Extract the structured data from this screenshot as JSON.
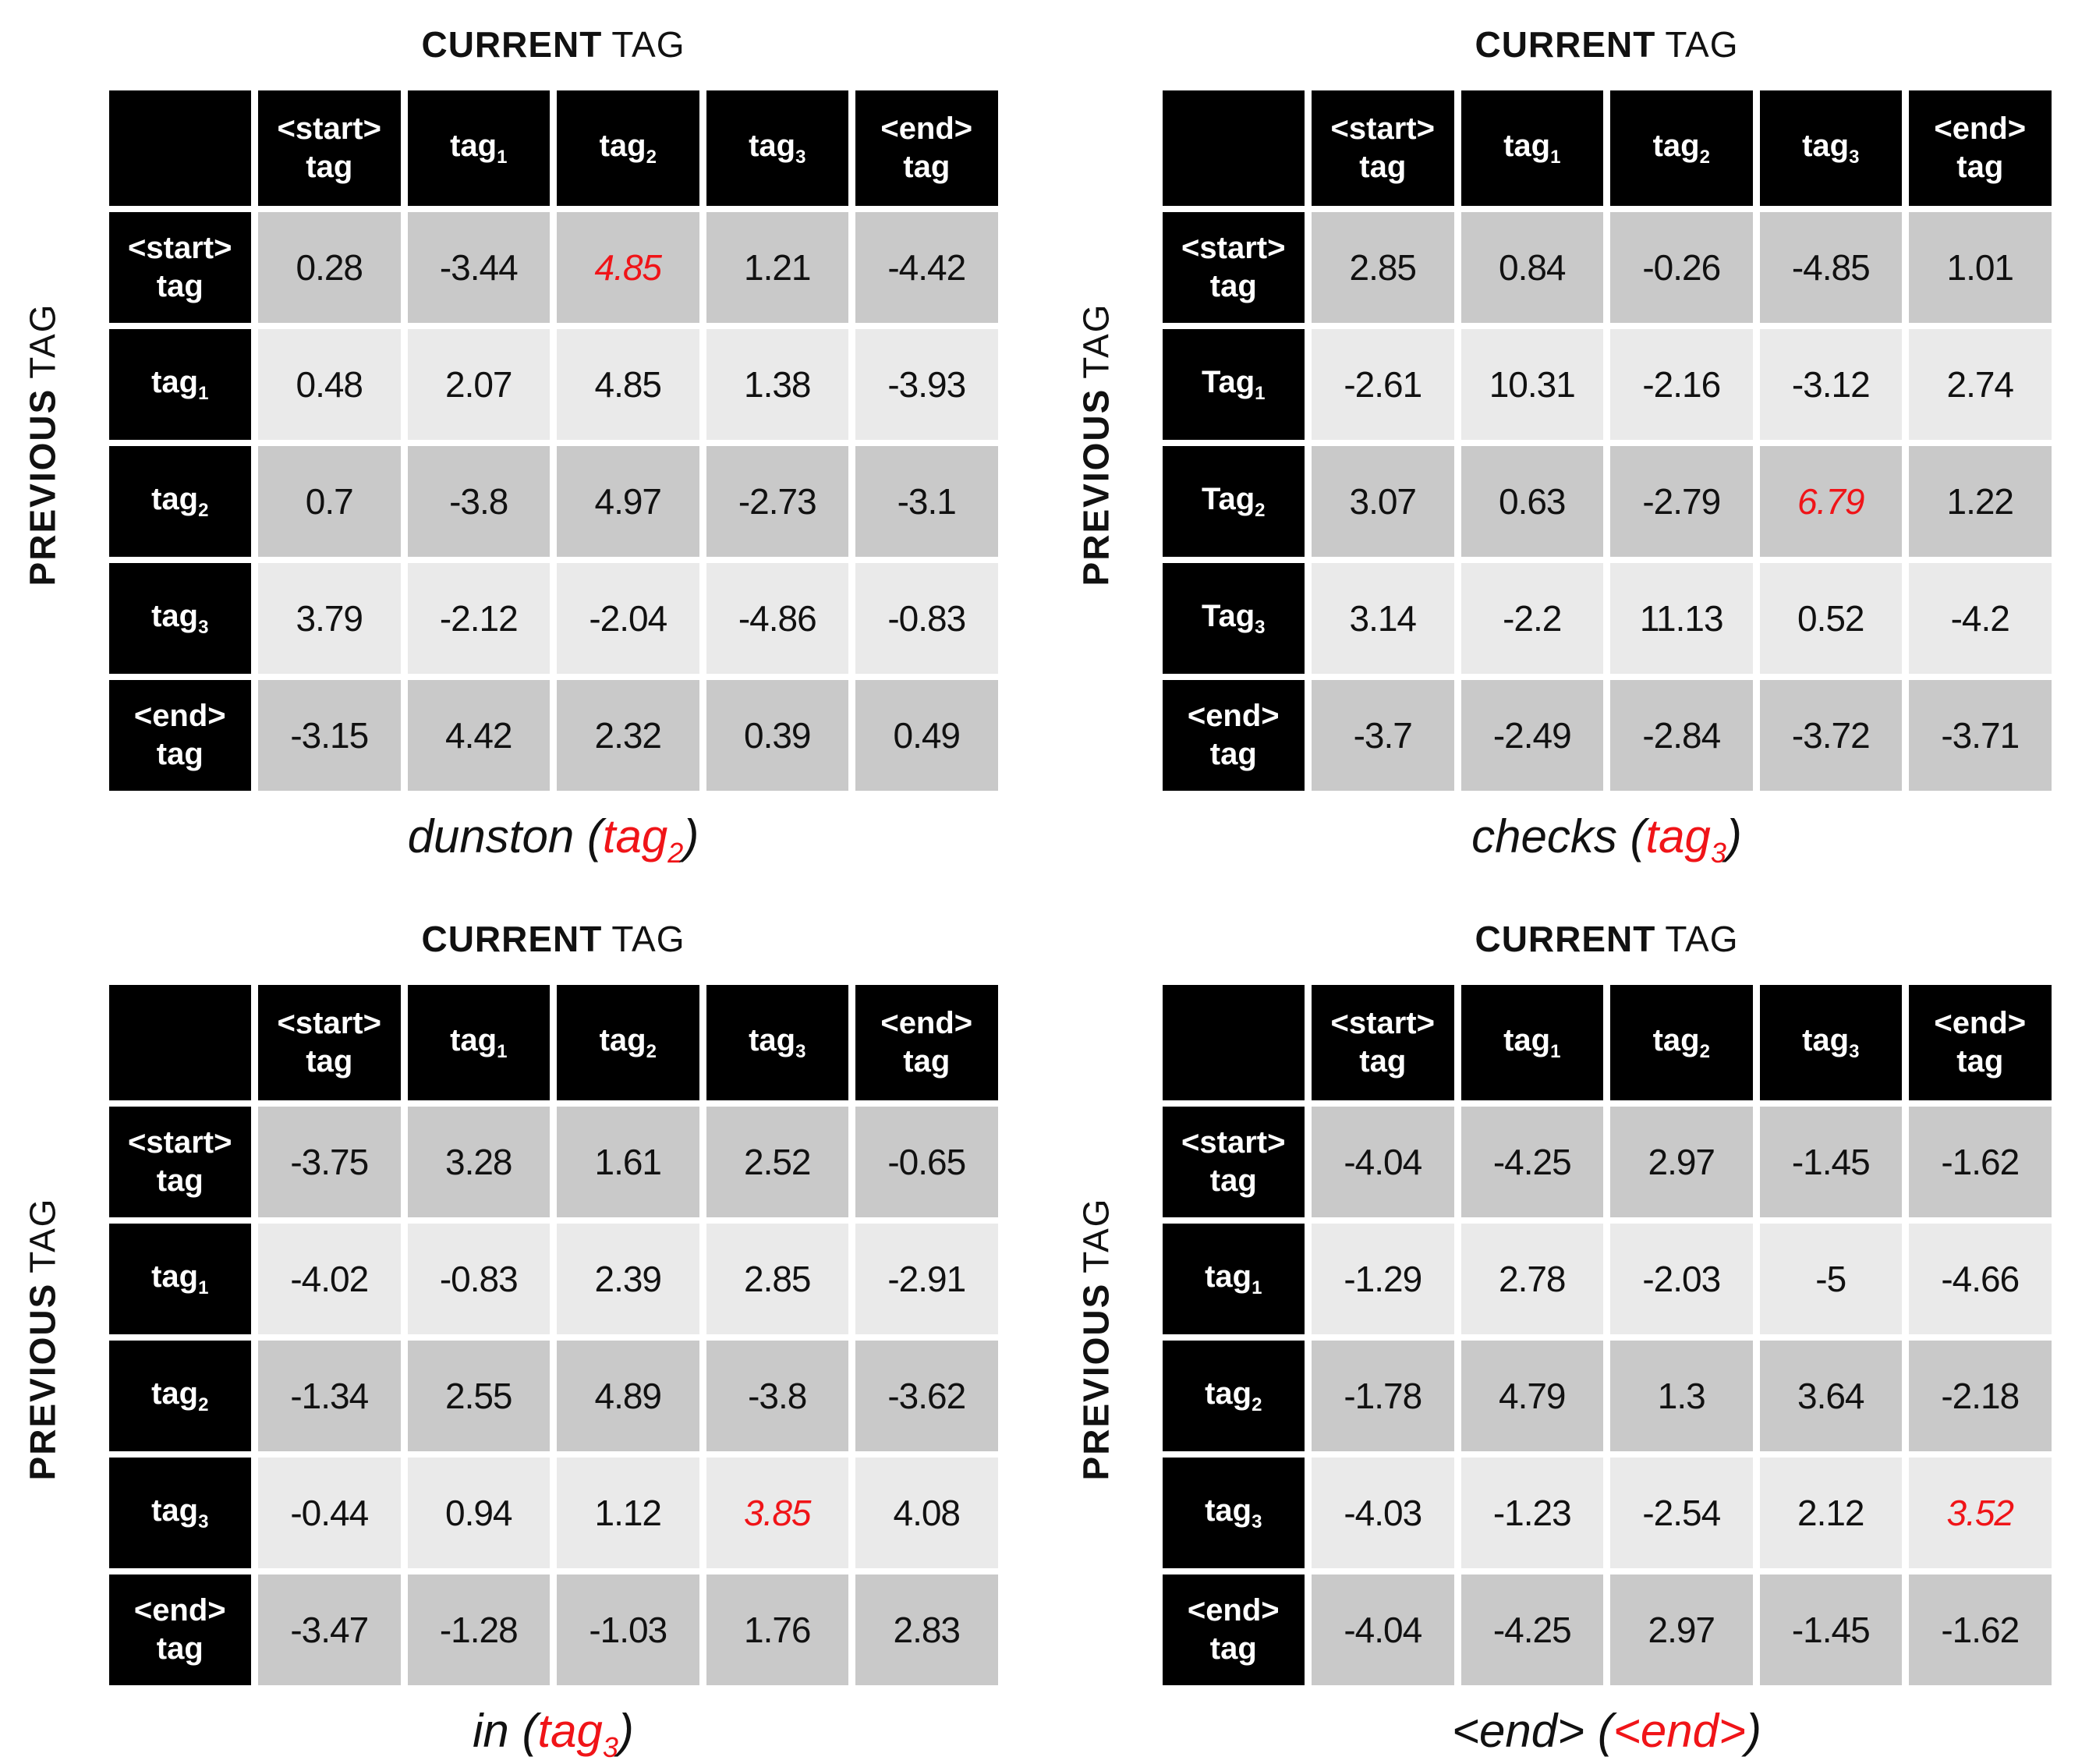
{
  "colors": {
    "highlight_red": "#f01418",
    "row_shade_dark": "#c9c9c9",
    "row_shade_light": "#eaeaea",
    "header_bg": "#000000",
    "header_text": "#ffffff",
    "value_text": "#111111",
    "background": "#ffffff"
  },
  "chart_data": [
    {
      "type": "table",
      "axis_top": {
        "bold": "CURRENT",
        "regular": "TAG"
      },
      "axis_left": {
        "bold": "PREVIOUS",
        "regular": "TAG"
      },
      "columns": [
        {
          "line1": "<start>",
          "line2": "tag"
        },
        {
          "text": "tag",
          "sub": "1"
        },
        {
          "text": "tag",
          "sub": "2"
        },
        {
          "text": "tag",
          "sub": "3"
        },
        {
          "line1": "<end>",
          "line2": "tag"
        }
      ],
      "rows": [
        {
          "label": {
            "line1": "<start>",
            "line2": "tag"
          },
          "values": [
            "0.28",
            "-3.44",
            "4.85",
            "1.21",
            "-4.42"
          ],
          "highlight_col": 2
        },
        {
          "label": {
            "text": "tag",
            "sub": "1"
          },
          "values": [
            "0.48",
            "2.07",
            "4.85",
            "1.38",
            "-3.93"
          ],
          "highlight_col": null
        },
        {
          "label": {
            "text": "tag",
            "sub": "2"
          },
          "values": [
            "0.7",
            "-3.8",
            "4.97",
            "-2.73",
            "-3.1"
          ],
          "highlight_col": null
        },
        {
          "label": {
            "text": "tag",
            "sub": "3"
          },
          "values": [
            "3.79",
            "-2.12",
            "-2.04",
            "-4.86",
            "-0.83"
          ],
          "highlight_col": null
        },
        {
          "label": {
            "line1": "<end>",
            "line2": "tag"
          },
          "values": [
            "-3.15",
            "4.42",
            "2.32",
            "0.39",
            "0.49"
          ],
          "highlight_col": null
        }
      ],
      "caption": {
        "prefix": "dunston (",
        "highlight": "tag",
        "highlight_sub": "2",
        "suffix": ")"
      }
    },
    {
      "type": "table",
      "axis_top": {
        "bold": "CURRENT",
        "regular": "TAG"
      },
      "axis_left": {
        "bold": "PREVIOUS",
        "regular": "TAG"
      },
      "columns": [
        {
          "line1": "<start>",
          "line2": "tag"
        },
        {
          "text": "tag",
          "sub": "1"
        },
        {
          "text": "tag",
          "sub": "2"
        },
        {
          "text": "tag",
          "sub": "3"
        },
        {
          "line1": "<end>",
          "line2": "tag"
        }
      ],
      "rows": [
        {
          "label": {
            "line1": "<start>",
            "line2": "tag"
          },
          "values": [
            "2.85",
            "0.84",
            "-0.26",
            "-4.85",
            "1.01"
          ],
          "highlight_col": null
        },
        {
          "label": {
            "text": "Tag",
            "sub": "1"
          },
          "values": [
            "-2.61",
            "10.31",
            "-2.16",
            "-3.12",
            "2.74"
          ],
          "highlight_col": null
        },
        {
          "label": {
            "text": "Tag",
            "sub": "2"
          },
          "values": [
            "3.07",
            "0.63",
            "-2.79",
            "6.79",
            "1.22"
          ],
          "highlight_col": 3
        },
        {
          "label": {
            "text": "Tag",
            "sub": "3"
          },
          "values": [
            "3.14",
            "-2.2",
            "11.13",
            "0.52",
            "-4.2"
          ],
          "highlight_col": null
        },
        {
          "label": {
            "line1": "<end>",
            "line2": "tag"
          },
          "values": [
            "-3.7",
            "-2.49",
            "-2.84",
            "-3.72",
            "-3.71"
          ],
          "highlight_col": null
        }
      ],
      "caption": {
        "prefix": "checks (",
        "highlight": "tag",
        "highlight_sub": "3",
        "suffix": ")"
      }
    },
    {
      "type": "table",
      "axis_top": {
        "bold": "CURRENT",
        "regular": "TAG"
      },
      "axis_left": {
        "bold": "PREVIOUS",
        "regular": "TAG"
      },
      "columns": [
        {
          "line1": "<start>",
          "line2": "tag"
        },
        {
          "text": "tag",
          "sub": "1"
        },
        {
          "text": "tag",
          "sub": "2"
        },
        {
          "text": "tag",
          "sub": "3"
        },
        {
          "line1": "<end>",
          "line2": "tag"
        }
      ],
      "rows": [
        {
          "label": {
            "line1": "<start>",
            "line2": "tag"
          },
          "values": [
            "-3.75",
            "3.28",
            "1.61",
            "2.52",
            "-0.65"
          ],
          "highlight_col": null
        },
        {
          "label": {
            "text": "tag",
            "sub": "1"
          },
          "values": [
            "-4.02",
            "-0.83",
            "2.39",
            "2.85",
            "-2.91"
          ],
          "highlight_col": null
        },
        {
          "label": {
            "text": "tag",
            "sub": "2"
          },
          "values": [
            "-1.34",
            "2.55",
            "4.89",
            "-3.8",
            "-3.62"
          ],
          "highlight_col": null
        },
        {
          "label": {
            "text": "tag",
            "sub": "3"
          },
          "values": [
            "-0.44",
            "0.94",
            "1.12",
            "3.85",
            "4.08"
          ],
          "highlight_col": 3
        },
        {
          "label": {
            "line1": "<end>",
            "line2": "tag"
          },
          "values": [
            "-3.47",
            "-1.28",
            "-1.03",
            "1.76",
            "2.83"
          ],
          "highlight_col": null
        }
      ],
      "caption": {
        "prefix": "in (",
        "highlight": "tag",
        "highlight_sub": "3",
        "suffix": ")"
      }
    },
    {
      "type": "table",
      "axis_top": {
        "bold": "CURRENT",
        "regular": "TAG"
      },
      "axis_left": {
        "bold": "PREVIOUS",
        "regular": "TAG"
      },
      "columns": [
        {
          "line1": "<start>",
          "line2": "tag"
        },
        {
          "text": "tag",
          "sub": "1"
        },
        {
          "text": "tag",
          "sub": "2"
        },
        {
          "text": "tag",
          "sub": "3"
        },
        {
          "line1": "<end>",
          "line2": "tag"
        }
      ],
      "rows": [
        {
          "label": {
            "line1": "<start>",
            "line2": "tag"
          },
          "values": [
            "-4.04",
            "-4.25",
            "2.97",
            "-1.45",
            "-1.62"
          ],
          "highlight_col": null
        },
        {
          "label": {
            "text": "tag",
            "sub": "1"
          },
          "values": [
            "-1.29",
            "2.78",
            "-2.03",
            "-5",
            "-4.66"
          ],
          "highlight_col": null
        },
        {
          "label": {
            "text": "tag",
            "sub": "2"
          },
          "values": [
            "-1.78",
            "4.79",
            "1.3",
            "3.64",
            "-2.18"
          ],
          "highlight_col": null
        },
        {
          "label": {
            "text": "tag",
            "sub": "3"
          },
          "values": [
            "-4.03",
            "-1.23",
            "-2.54",
            "2.12",
            "3.52"
          ],
          "highlight_col": 4
        },
        {
          "label": {
            "line1": "<end>",
            "line2": "tag"
          },
          "values": [
            "-4.04",
            "-4.25",
            "2.97",
            "-1.45",
            "-1.62"
          ],
          "highlight_col": null
        }
      ],
      "caption": {
        "prefix": "<end> (",
        "highlight": "<end>",
        "highlight_sub": "",
        "suffix": ")"
      }
    }
  ]
}
